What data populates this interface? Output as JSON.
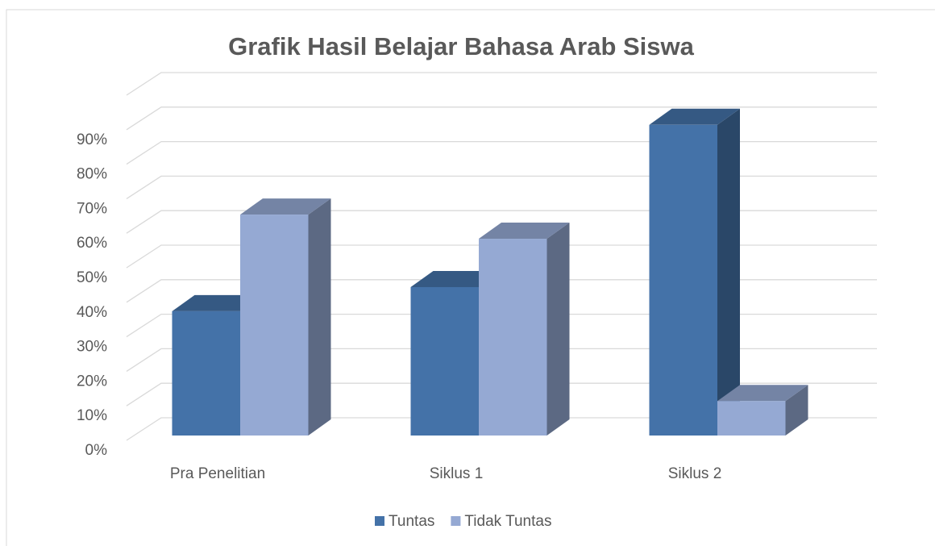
{
  "chart_data": {
    "type": "bar3d",
    "title": "Grafik Hasil Belajar Bahasa Arab Siswa",
    "categories": [
      "Pra Penelitian",
      "Siklus 1",
      "Siklus 2"
    ],
    "series": [
      {
        "name": "Tuntas",
        "color": "#4472a8",
        "values": [
          36,
          43,
          90
        ]
      },
      {
        "name": "Tidak Tuntas",
        "color": "#95a9d3",
        "values": [
          64,
          57,
          10
        ]
      }
    ],
    "ylim": [
      0,
      100
    ],
    "yticks": [
      {
        "value": 0,
        "label": "0%"
      },
      {
        "value": 10,
        "label": "10%"
      },
      {
        "value": 20,
        "label": "20%"
      },
      {
        "value": 30,
        "label": "30%"
      },
      {
        "value": 40,
        "label": "40%"
      },
      {
        "value": 50,
        "label": "50%"
      },
      {
        "value": 60,
        "label": "60%"
      },
      {
        "value": 70,
        "label": "70%"
      },
      {
        "value": 80,
        "label": "80%"
      },
      {
        "value": 90,
        "label": "90%"
      }
    ],
    "grid": true,
    "legend": "bottom"
  }
}
